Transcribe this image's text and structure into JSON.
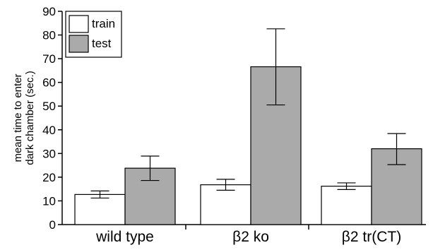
{
  "chart_data": {
    "type": "bar",
    "title": "",
    "xlabel": "",
    "ylabel": [
      "mean time to enter",
      "dark chamber (sec.)"
    ],
    "ylim": [
      0,
      90
    ],
    "yticks": [
      0,
      10,
      20,
      30,
      40,
      50,
      60,
      70,
      80,
      90
    ],
    "categories": [
      "wild type",
      "β2 ko",
      "β2 tr(CT)"
    ],
    "series": [
      {
        "name": "train",
        "color": "#ffffff",
        "values": [
          12.7,
          16.8,
          16.2
        ],
        "err_low": [
          11.2,
          14.5,
          14.8
        ],
        "err_high": [
          14.2,
          19.1,
          17.6
        ]
      },
      {
        "name": "test",
        "color": "#aaaaaa",
        "values": [
          23.8,
          66.6,
          32.0
        ],
        "err_low": [
          18.6,
          50.5,
          25.3
        ],
        "err_high": [
          28.9,
          82.6,
          38.4
        ]
      }
    ],
    "legend": "top-left",
    "grid": false
  }
}
